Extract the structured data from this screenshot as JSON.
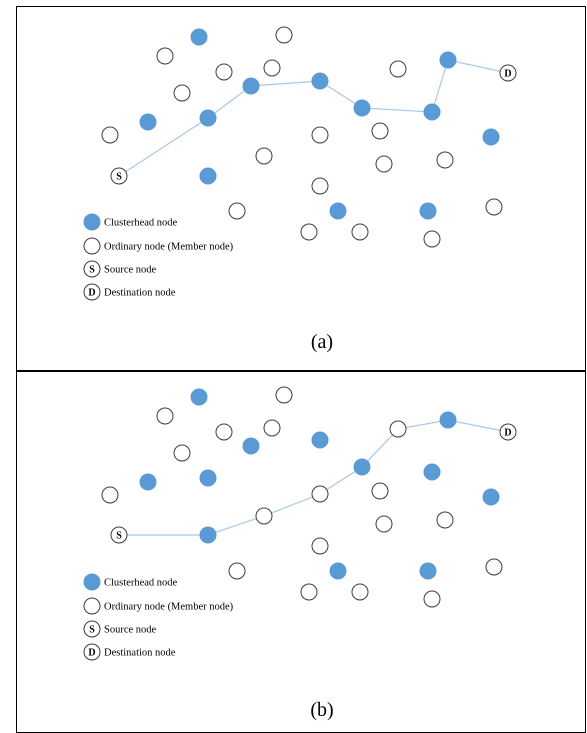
{
  "panels": [
    {
      "caption": "(a)",
      "route": [
        "S",
        208,
        251,
        320,
        362,
        432,
        448,
        "D"
      ]
    },
    {
      "caption": "(b)",
      "route": [
        "S",
        208,
        264,
        320,
        362,
        398,
        448,
        "D"
      ]
    }
  ],
  "legend": [
    {
      "kind": "clusterhead",
      "label": "Clusterhead node"
    },
    {
      "kind": "ordinary",
      "label": "Ordinary node (Member node)"
    },
    {
      "kind": "source",
      "letter": "S",
      "label": "Source node"
    },
    {
      "kind": "destination",
      "letter": "D",
      "label": "Destination node"
    }
  ],
  "node_letters": {
    "source": "S",
    "destination": "D"
  },
  "colors": {
    "clusterhead": "#5b9bd5",
    "ordinary_stroke": "#3c3c3c",
    "route": "#a9c8e8",
    "border": "#000000"
  }
}
